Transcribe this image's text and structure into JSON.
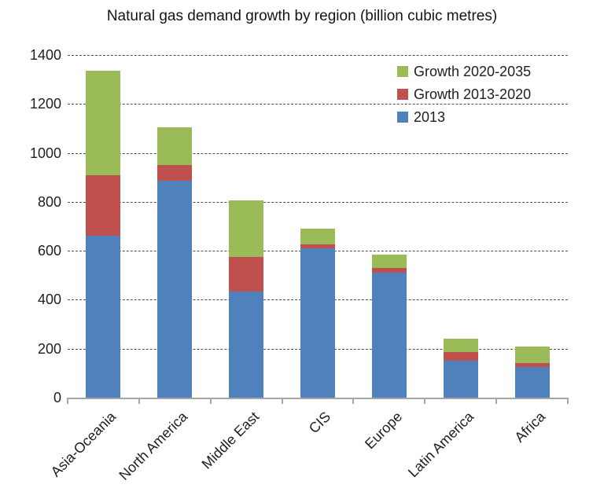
{
  "chart_data": {
    "type": "bar",
    "stacked": true,
    "title": "Natural gas demand growth by region (billion cubic metres)",
    "categories": [
      "Asia-Oceania",
      "North America",
      "Middle East",
      "CIS",
      "Europe",
      "Latin America",
      "Africa"
    ],
    "series": [
      {
        "name": "2013",
        "color": "#4F81BD",
        "values": [
          660,
          885,
          435,
          610,
          510,
          150,
          125
        ]
      },
      {
        "name": "Growth 2013-2020",
        "color": "#C0504D",
        "values": [
          250,
          65,
          140,
          15,
          20,
          35,
          15
        ]
      },
      {
        "name": "Growth 2020-2035",
        "color": "#9BBB59",
        "values": [
          425,
          155,
          230,
          65,
          55,
          55,
          70
        ]
      }
    ],
    "stack_totals": [
      1335,
      1105,
      805,
      690,
      585,
      240,
      210
    ],
    "legend": {
      "position": "top-right-inside",
      "entries": [
        "Growth 2020-2035",
        "Growth 2013-2020",
        "2013"
      ]
    },
    "xlabel": "",
    "ylabel": "",
    "ylim": [
      0,
      1400
    ],
    "yticks": [
      0,
      200,
      400,
      600,
      800,
      1000,
      1200,
      1400
    ],
    "grid": "horizontal-dashed",
    "grid_color": "#4d4d4d",
    "axis_color": "#a6a6a6",
    "text_color": "#1f1f1f",
    "background": "#ffffff"
  }
}
